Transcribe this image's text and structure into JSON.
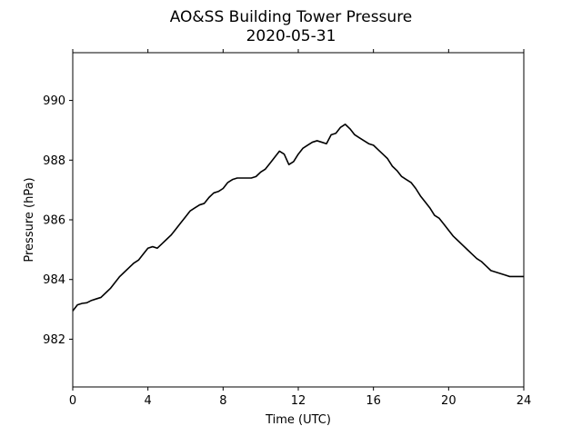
{
  "chart_data": {
    "type": "line",
    "title": "AO&SS Building Tower Pressure",
    "subtitle": "2020-05-31",
    "xlabel": "Time (UTC)",
    "ylabel": "Pressure (hPa)",
    "xlim": [
      0,
      24
    ],
    "ylim": [
      980.4,
      991.6
    ],
    "xticks": [
      0,
      4,
      8,
      12,
      16,
      20,
      24
    ],
    "yticks": [
      982,
      984,
      986,
      988,
      990
    ],
    "grid": false,
    "line_color": "#000000",
    "series": [
      {
        "x": [
          0,
          0.25,
          0.5,
          0.75,
          1.0,
          1.25,
          1.5,
          1.75,
          2.0,
          2.25,
          2.5,
          2.75,
          3.0,
          3.25,
          3.5,
          3.75,
          4.0,
          4.25,
          4.5,
          4.75,
          5.0,
          5.25,
          5.5,
          5.75,
          6.0,
          6.25,
          6.5,
          6.75,
          7.0,
          7.25,
          7.5,
          7.75,
          8.0,
          8.25,
          8.5,
          8.75,
          9.0,
          9.25,
          9.5,
          9.75,
          10.0,
          10.25,
          10.5,
          10.75,
          11.0,
          11.25,
          11.5,
          11.75,
          12.0,
          12.25,
          12.5,
          12.75,
          13.0,
          13.25,
          13.5,
          13.75,
          14.0,
          14.25,
          14.5,
          14.75,
          15.0,
          15.25,
          15.5,
          15.75,
          16.0,
          16.25,
          16.5,
          16.75,
          17.0,
          17.25,
          17.5,
          17.75,
          18.0,
          18.25,
          18.5,
          18.75,
          19.0,
          19.25,
          19.5,
          19.75,
          20.0,
          20.25,
          20.5,
          20.75,
          21.0,
          21.25,
          21.5,
          21.75,
          22.0,
          22.25,
          22.5,
          22.75,
          23.0,
          23.25,
          23.5,
          23.75,
          24.0
        ],
        "y": [
          982.95,
          983.15,
          983.2,
          983.22,
          983.3,
          983.35,
          983.4,
          983.55,
          983.7,
          983.9,
          984.1,
          984.25,
          984.4,
          984.55,
          984.65,
          984.85,
          985.05,
          985.1,
          985.05,
          985.2,
          985.35,
          985.5,
          985.7,
          985.9,
          986.1,
          986.3,
          986.4,
          986.5,
          986.55,
          986.75,
          986.9,
          986.95,
          987.05,
          987.25,
          987.35,
          987.4,
          987.4,
          987.4,
          987.4,
          987.45,
          987.6,
          987.7,
          987.9,
          988.1,
          988.3,
          988.2,
          987.85,
          987.95,
          988.2,
          988.4,
          988.5,
          988.6,
          988.65,
          988.6,
          988.55,
          988.85,
          988.9,
          989.1,
          989.2,
          989.05,
          988.85,
          988.75,
          988.65,
          988.55,
          988.5,
          988.35,
          988.2,
          988.05,
          987.8,
          987.65,
          987.45,
          987.35,
          987.25,
          987.05,
          986.8,
          986.6,
          986.4,
          986.15,
          986.05,
          985.85,
          985.65,
          985.45,
          985.3,
          985.15,
          985.0,
          984.85,
          984.7,
          984.6,
          984.45,
          984.3,
          984.25,
          984.2,
          984.15,
          984.1,
          984.1,
          984.1,
          984.1
        ]
      }
    ]
  }
}
